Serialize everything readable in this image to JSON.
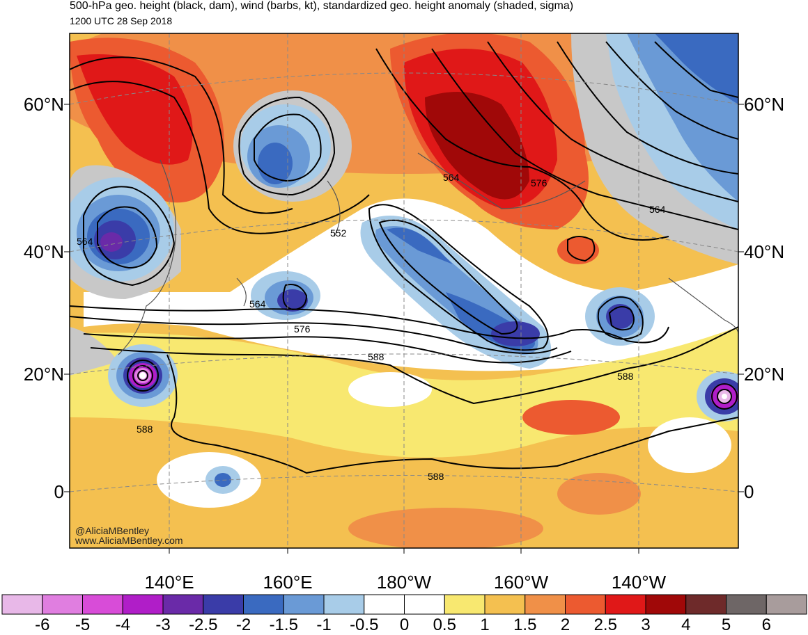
{
  "header": {
    "title": "500-hPa geo. height (black, dam), wind (barbs, kt), standardized geo. height anomaly (shaded, sigma)",
    "time": "1200 UTC 28 Sep 2018"
  },
  "axes": {
    "lat_labels": [
      "60°N",
      "40°N",
      "20°N",
      "0"
    ],
    "lon_labels": [
      "140°E",
      "160°E",
      "180°W",
      "160°W",
      "140°W"
    ]
  },
  "contour_labels": [
    "564",
    "552",
    "564",
    "576",
    "588",
    "588",
    "588",
    "564",
    "576",
    "564",
    "588"
  ],
  "colorbar": {
    "labels": [
      "-6",
      "-5",
      "-4",
      "-3",
      "-2.5",
      "-2",
      "-1.5",
      "-1",
      "-0.5",
      "0",
      "0.5",
      "1",
      "1.5",
      "2",
      "2.5",
      "3",
      "4",
      "5",
      "6"
    ],
    "colors": [
      "#e8b8e8",
      "#e07ee0",
      "#d84cd8",
      "#b01ec8",
      "#6a2aa8",
      "#3a3ca8",
      "#3a6ac0",
      "#6a9ad6",
      "#a8cce8",
      "#ffffff",
      "#ffffff",
      "#f8e870",
      "#f4c050",
      "#f09048",
      "#ec5a30",
      "#e01818",
      "#a00808",
      "#6e2a2a",
      "#6e6666",
      "#a89c9c"
    ]
  },
  "credits": {
    "handle": "@AliciaMBentley",
    "site": "www.AliciaMBentley.com"
  }
}
